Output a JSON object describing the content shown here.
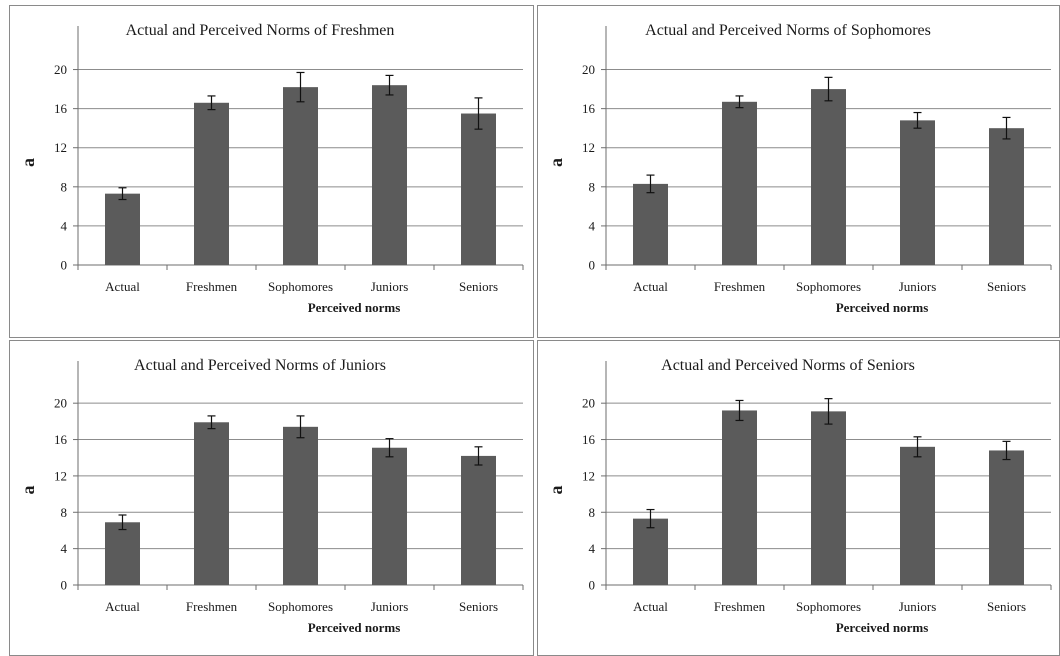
{
  "colors": {
    "bar": "#5b5b5b",
    "grid": "#8c8c8c",
    "axis": "#6e6e6e",
    "errorbar": "#111111"
  },
  "chart_data": [
    {
      "type": "bar",
      "title": "Actual and Perceived Norms of Freshmen",
      "xlabel": "Perceived norms",
      "ylabel": "a",
      "categories": [
        "Actual",
        "Freshmen",
        "Sophomores",
        "Juniors",
        "Seniors"
      ],
      "values": [
        7.3,
        16.6,
        18.2,
        18.4,
        15.5
      ],
      "error": [
        0.6,
        0.7,
        1.5,
        1.0,
        1.6
      ],
      "ylim": [
        0,
        22
      ],
      "yticks": [
        "0",
        "4",
        "8",
        "12",
        "16",
        "20"
      ],
      "grid": true
    },
    {
      "type": "bar",
      "title": "Actual and Perceived Norms of Sophomores",
      "xlabel": "Perceived norms",
      "ylabel": "a",
      "categories": [
        "Actual",
        "Freshmen",
        "Sophomores",
        "Juniors",
        "Seniors"
      ],
      "values": [
        8.3,
        16.7,
        18.0,
        14.8,
        14.0
      ],
      "error": [
        0.9,
        0.6,
        1.2,
        0.8,
        1.1
      ],
      "ylim": [
        0,
        22
      ],
      "yticks": [
        "0",
        "4",
        "8",
        "12",
        "16",
        "20"
      ],
      "grid": true
    },
    {
      "type": "bar",
      "title": "Actual and Perceived Norms of Juniors",
      "xlabel": "Perceived norms",
      "ylabel": "a",
      "categories": [
        "Actual",
        "Freshmen",
        "Sophomores",
        "Juniors",
        "Seniors"
      ],
      "values": [
        6.9,
        17.9,
        17.4,
        15.1,
        14.2
      ],
      "error": [
        0.8,
        0.7,
        1.2,
        1.0,
        1.0
      ],
      "ylim": [
        0,
        22
      ],
      "yticks": [
        "0",
        "4",
        "8",
        "12",
        "16",
        "20"
      ],
      "grid": true
    },
    {
      "type": "bar",
      "title": "Actual and Perceived Norms of Seniors",
      "xlabel": "Perceived norms",
      "ylabel": "a",
      "categories": [
        "Actual",
        "Freshmen",
        "Sophomores",
        "Juniors",
        "Seniors"
      ],
      "values": [
        7.3,
        19.2,
        19.1,
        15.2,
        14.8
      ],
      "error": [
        1.0,
        1.1,
        1.4,
        1.1,
        1.0
      ],
      "ylim": [
        0,
        22
      ],
      "yticks": [
        "0",
        "4",
        "8",
        "12",
        "16",
        "20"
      ],
      "grid": true
    }
  ]
}
